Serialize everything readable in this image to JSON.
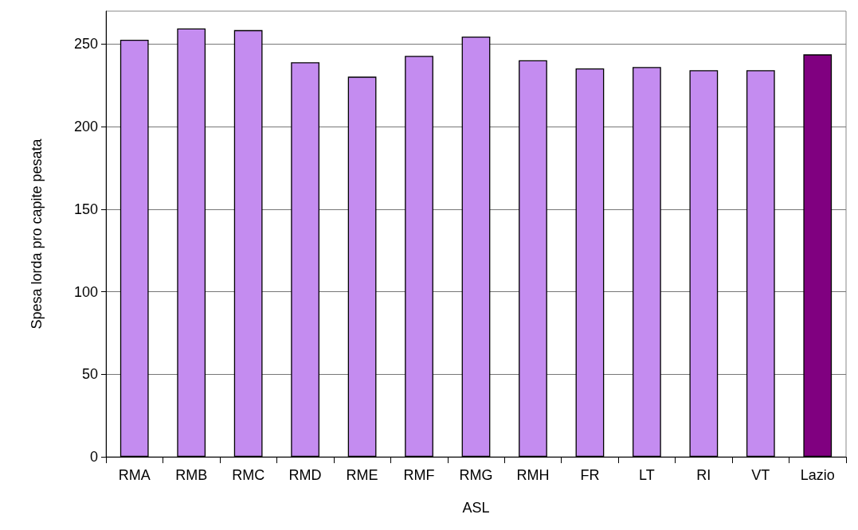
{
  "chart_data": {
    "type": "bar",
    "xlabel": "ASL",
    "ylabel": "Spesa lorda pro capite pesata",
    "categories": [
      "RMA",
      "RMB",
      "RMC",
      "RMD",
      "RME",
      "RMF",
      "RMG",
      "RMH",
      "FR",
      "LT",
      "RI",
      "VT",
      "Lazio"
    ],
    "values": [
      252.7,
      259.5,
      258.5,
      239,
      230.3,
      242.9,
      254.6,
      240.2,
      235.3,
      236.1,
      234.2,
      234.2,
      243.8
    ],
    "colors": [
      "#c48cf0",
      "#c48cf0",
      "#c48cf0",
      "#c48cf0",
      "#c48cf0",
      "#c48cf0",
      "#c48cf0",
      "#c48cf0",
      "#c48cf0",
      "#c48cf0",
      "#c48cf0",
      "#c48cf0",
      "#800080"
    ],
    "ylim": [
      0,
      270
    ],
    "yticks": [
      0,
      50,
      100,
      150,
      200,
      250
    ],
    "grid": "y"
  }
}
